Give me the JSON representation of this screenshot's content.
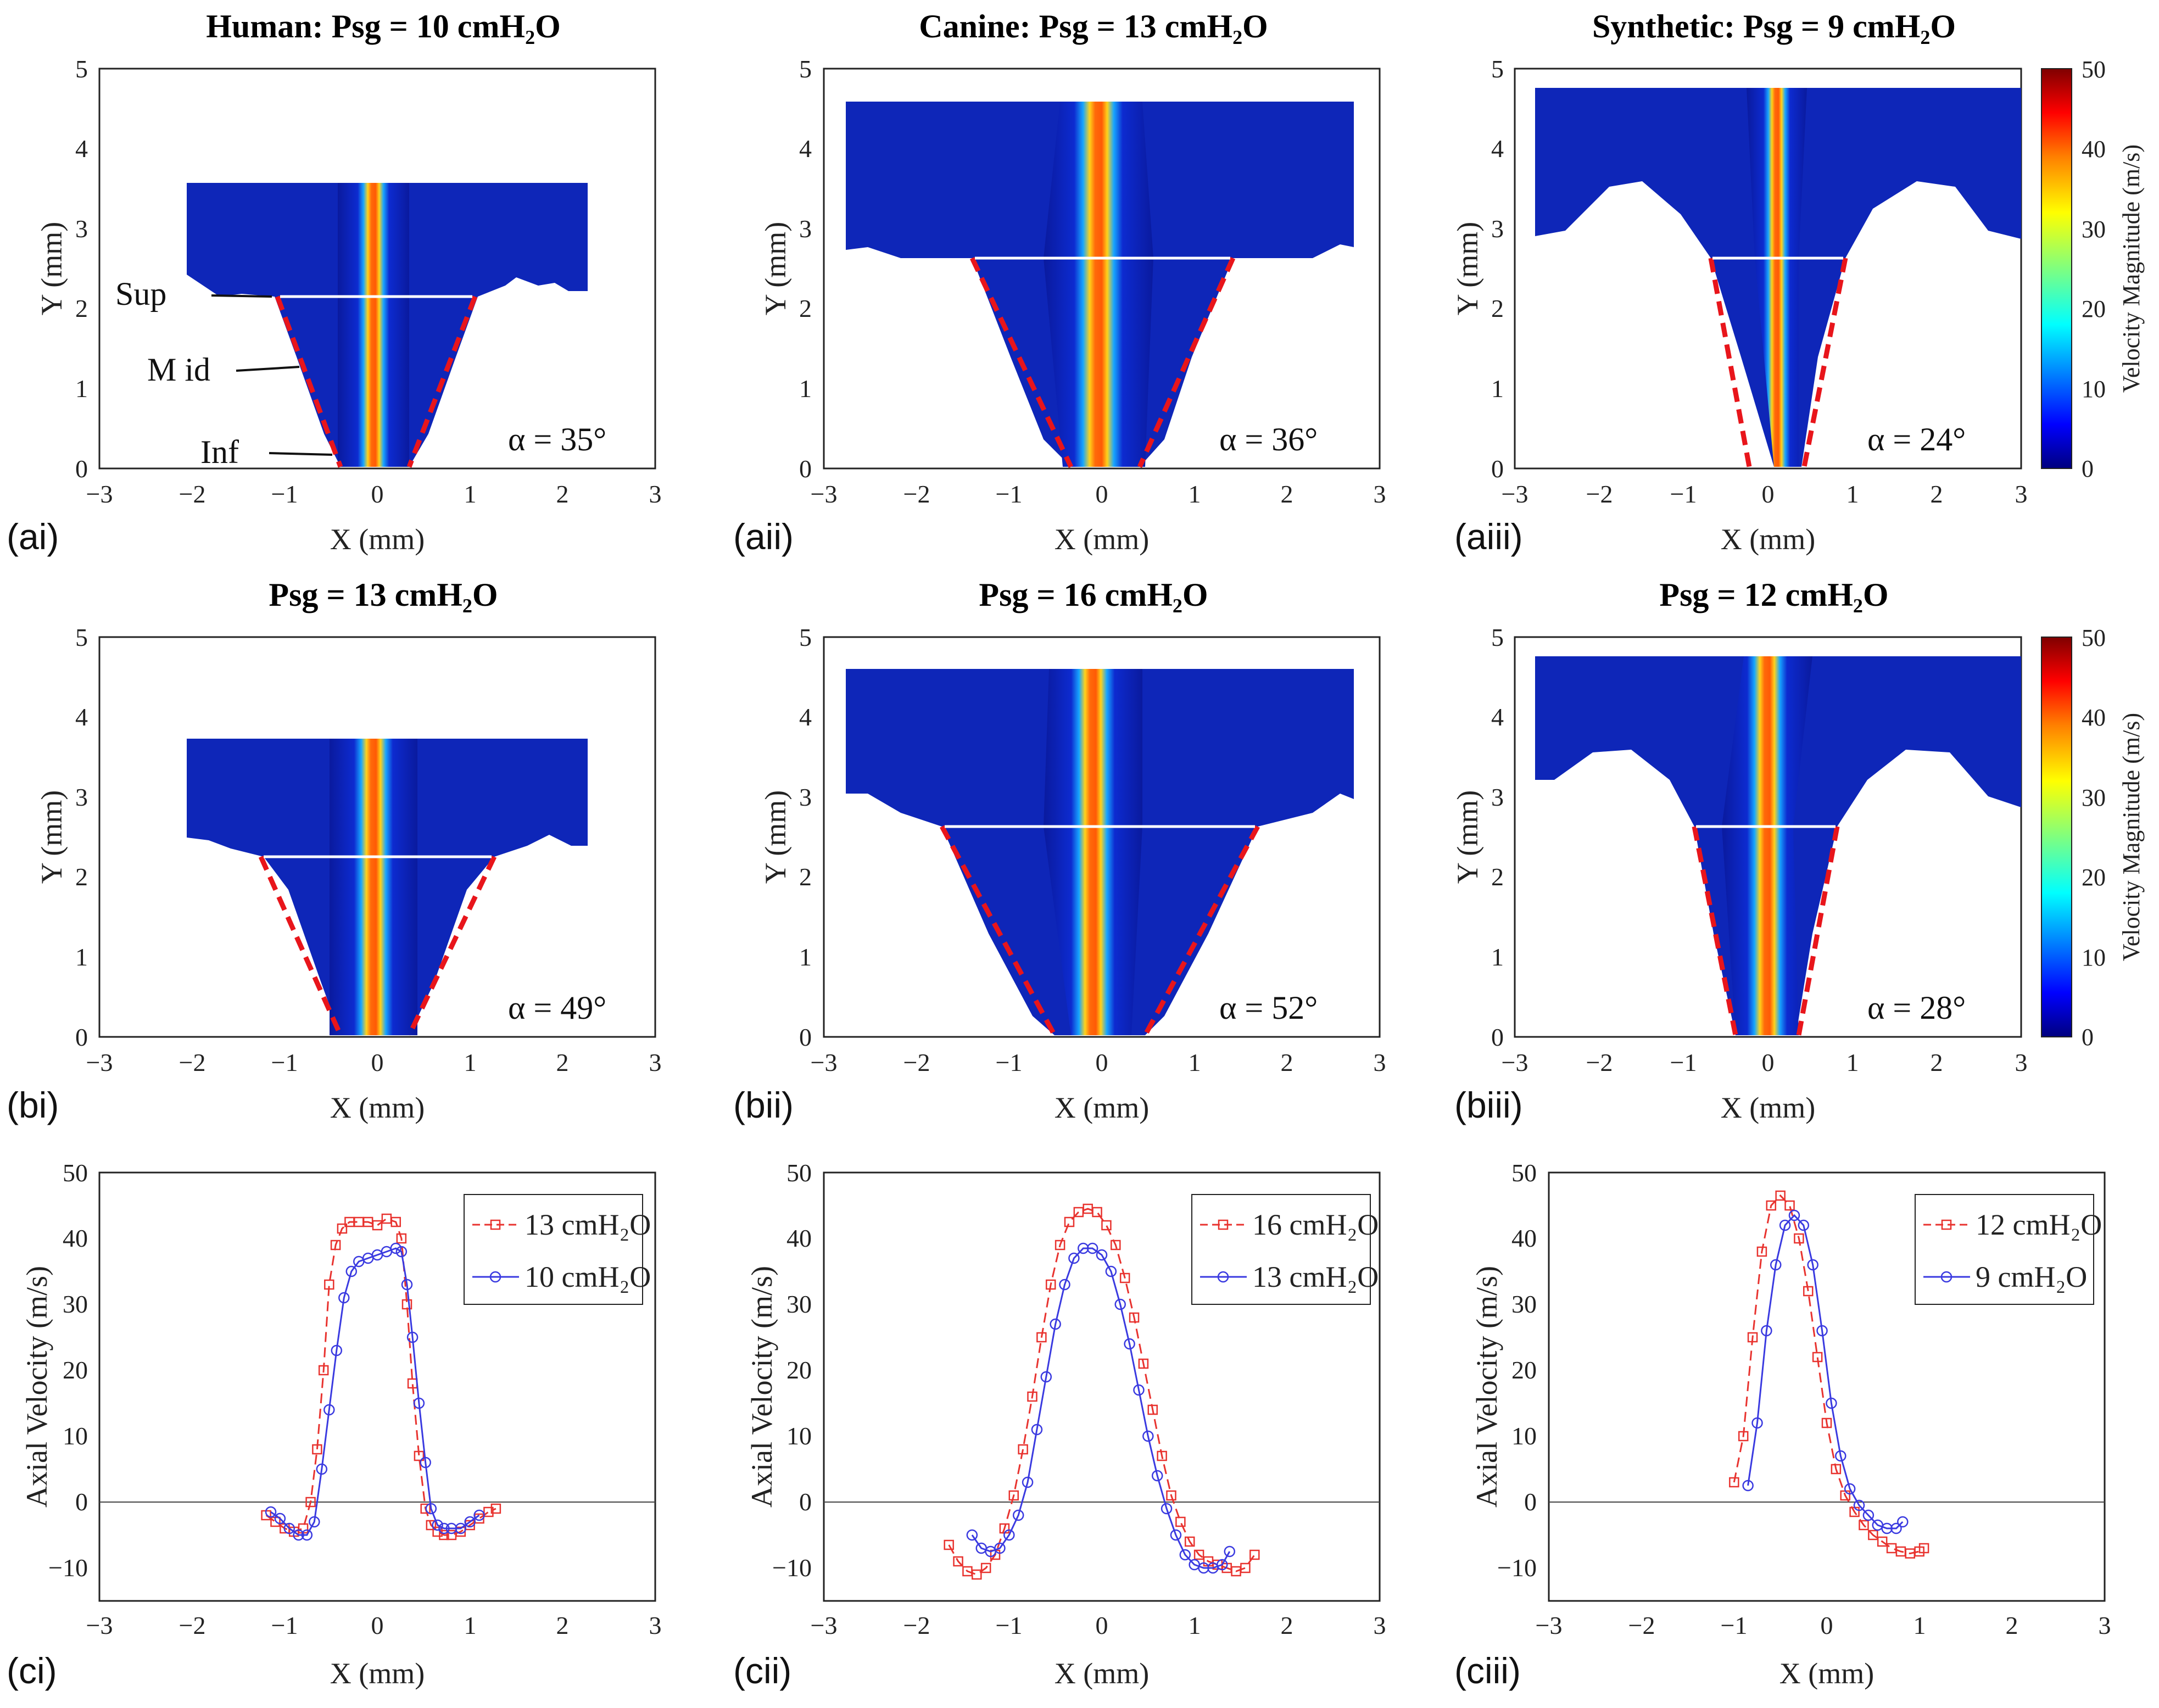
{
  "figure": {
    "colors": {
      "series_high": "#e8332f",
      "series_low": "#3a3ae0",
      "curve_lines": "#f0d14a",
      "dashed_boundary": "#e8151b",
      "colormap": [
        "#00007f",
        "#0000ff",
        "#007fff",
        "#00ffff",
        "#7fff7f",
        "#ffff00",
        "#ff7f00",
        "#ff0000",
        "#7f0000"
      ]
    },
    "colorbar": {
      "label": "Velocity Magnitude (m/s)",
      "ticks": [
        "0",
        "10",
        "20",
        "30",
        "40",
        "50"
      ],
      "range": [
        0,
        50
      ]
    },
    "rows": [
      {
        "panels": [
          {
            "id": "ai",
            "panel_label": "(ai)",
            "title": "Human: Psg = 10 cmH₂O",
            "alpha": "α = 35°",
            "xlabel": "X (mm)",
            "ylabel": "Y (mm)",
            "xticks": [
              "−3",
              "−2",
              "−1",
              "0",
              "1",
              "2",
              "3"
            ],
            "yticks": [
              "0",
              "1",
              "2",
              "3",
              "4",
              "5"
            ],
            "xlim": [
              -3,
              3
            ],
            "ylim": [
              0,
              5
            ],
            "annotations": [
              "Sup",
              "M id",
              "Inf"
            ]
          },
          {
            "id": "aii",
            "panel_label": "(aii)",
            "title": "Canine: Psg = 13 cmH₂O",
            "alpha": "α = 36°",
            "xlabel": "X (mm)",
            "ylabel": "Y (mm)",
            "xticks": [
              "−3",
              "−2",
              "−1",
              "0",
              "1",
              "2",
              "3"
            ],
            "yticks": [
              "0",
              "1",
              "2",
              "3",
              "4",
              "5"
            ],
            "xlim": [
              -3,
              3
            ],
            "ylim": [
              0,
              5
            ]
          },
          {
            "id": "aiii",
            "panel_label": "(aiii)",
            "title": "Synthetic: Psg = 9 cmH₂O",
            "alpha": "α = 24°",
            "xlabel": "X (mm)",
            "ylabel": "Y (mm)",
            "xticks": [
              "−3",
              "−2",
              "−1",
              "0",
              "1",
              "2",
              "3"
            ],
            "yticks": [
              "0",
              "1",
              "2",
              "3",
              "4",
              "5"
            ],
            "xlim": [
              -3,
              3
            ],
            "ylim": [
              0,
              5
            ]
          }
        ]
      },
      {
        "panels": [
          {
            "id": "bi",
            "panel_label": "(bi)",
            "title": "Psg = 13 cmH₂O",
            "alpha": "α = 49°",
            "xlabel": "X (mm)",
            "ylabel": "Y (mm)",
            "xticks": [
              "−3",
              "−2",
              "−1",
              "0",
              "1",
              "2",
              "3"
            ],
            "yticks": [
              "0",
              "1",
              "2",
              "3",
              "4",
              "5"
            ],
            "xlim": [
              -3,
              3
            ],
            "ylim": [
              0,
              5
            ]
          },
          {
            "id": "bii",
            "panel_label": "(bii)",
            "title": "Psg = 16 cmH₂O",
            "alpha": "α = 52°",
            "xlabel": "X (mm)",
            "ylabel": "Y (mm)",
            "xticks": [
              "−3",
              "−2",
              "−1",
              "0",
              "1",
              "2",
              "3"
            ],
            "yticks": [
              "0",
              "1",
              "2",
              "3",
              "4",
              "5"
            ],
            "xlim": [
              -3,
              3
            ],
            "ylim": [
              0,
              5
            ]
          },
          {
            "id": "biii",
            "panel_label": "(biii)",
            "title": "Psg = 12 cmH₂O",
            "alpha": "α = 28°",
            "xlabel": "X (mm)",
            "ylabel": "Y (mm)",
            "xticks": [
              "−3",
              "−2",
              "−1",
              "0",
              "1",
              "2",
              "3"
            ],
            "yticks": [
              "0",
              "1",
              "2",
              "3",
              "4",
              "5"
            ],
            "xlim": [
              -3,
              3
            ],
            "ylim": [
              0,
              5
            ]
          }
        ]
      },
      {
        "panels": [
          {
            "id": "ci",
            "panel_label": "(ci)",
            "xlabel": "X (mm)",
            "ylabel": "Axial Velocity (m/s)",
            "xticks": [
              "−3",
              "−2",
              "−1",
              "0",
              "1",
              "2",
              "3"
            ],
            "yticks": [
              "−10",
              "0",
              "10",
              "20",
              "30",
              "40",
              "50"
            ]
          },
          {
            "id": "cii",
            "panel_label": "(cii)",
            "xlabel": "X (mm)",
            "ylabel": "Axial Velocity (m/s)",
            "xticks": [
              "−3",
              "−2",
              "−1",
              "0",
              "1",
              "2",
              "3"
            ],
            "yticks": [
              "−10",
              "0",
              "10",
              "20",
              "30",
              "40",
              "50"
            ]
          },
          {
            "id": "ciii",
            "panel_label": "(ciii)",
            "xlabel": "X (mm)",
            "ylabel": "Axial Velocity (m/s)",
            "xticks": [
              "−3",
              "−2",
              "−1",
              "0",
              "1",
              "2",
              "3"
            ],
            "yticks": [
              "−10",
              "0",
              "10",
              "20",
              "30",
              "40",
              "50"
            ]
          }
        ]
      }
    ]
  },
  "chart_data": [
    {
      "type": "line",
      "id": "ci",
      "xlim": [
        -3,
        3
      ],
      "ylim": [
        -15,
        50
      ],
      "legend_placement": "top-right",
      "grid": false,
      "xlabel": "X (mm)",
      "ylabel": "Axial Velocity (m/s)",
      "series": [
        {
          "name": "13 cmH₂O",
          "marker": "square",
          "dash": "dashed",
          "x": [
            -1.2,
            -1.1,
            -1.0,
            -0.9,
            -0.8,
            -0.72,
            -0.65,
            -0.58,
            -0.52,
            -0.45,
            -0.38,
            -0.3,
            -0.2,
            -0.1,
            0.0,
            0.1,
            0.2,
            0.26,
            0.32,
            0.38,
            0.45,
            0.52,
            0.58,
            0.65,
            0.72,
            0.8,
            0.9,
            1.0,
            1.1,
            1.2,
            1.28
          ],
          "y": [
            -2,
            -3,
            -4,
            -4.5,
            -4,
            0,
            8,
            20,
            33,
            39,
            41.5,
            42.5,
            42.5,
            42.5,
            42,
            43,
            42.5,
            40,
            30,
            18,
            7,
            -1,
            -3.5,
            -4.5,
            -5,
            -5,
            -4.5,
            -3.5,
            -2.5,
            -1.5,
            -1
          ]
        },
        {
          "name": "10 cmH₂O",
          "marker": "circle",
          "dash": "solid",
          "x": [
            -1.15,
            -1.05,
            -0.95,
            -0.85,
            -0.76,
            -0.68,
            -0.6,
            -0.52,
            -0.44,
            -0.36,
            -0.28,
            -0.2,
            -0.1,
            0.0,
            0.1,
            0.2,
            0.26,
            0.32,
            0.38,
            0.45,
            0.52,
            0.58,
            0.65,
            0.72,
            0.8,
            0.9,
            1.0,
            1.1
          ],
          "y": [
            -1.5,
            -2.5,
            -4,
            -5,
            -5,
            -3,
            5,
            14,
            23,
            31,
            35,
            36.5,
            37,
            37.5,
            38,
            38.5,
            38,
            33,
            25,
            15,
            6,
            -1,
            -3.5,
            -4,
            -4,
            -4,
            -3,
            -2
          ]
        }
      ]
    },
    {
      "type": "line",
      "id": "cii",
      "xlim": [
        -3,
        3
      ],
      "ylim": [
        -15,
        50
      ],
      "legend_placement": "top-right",
      "grid": false,
      "xlabel": "X (mm)",
      "ylabel": "Axial Velocity (m/s)",
      "series": [
        {
          "name": "16 cmH₂O",
          "marker": "square",
          "dash": "dashed",
          "x": [
            -1.65,
            -1.55,
            -1.45,
            -1.35,
            -1.25,
            -1.15,
            -1.05,
            -0.95,
            -0.85,
            -0.75,
            -0.65,
            -0.55,
            -0.45,
            -0.35,
            -0.25,
            -0.15,
            -0.05,
            0.05,
            0.15,
            0.25,
            0.35,
            0.45,
            0.55,
            0.65,
            0.75,
            0.85,
            0.95,
            1.05,
            1.15,
            1.25,
            1.35,
            1.45,
            1.55,
            1.65
          ],
          "y": [
            -6.5,
            -9,
            -10.5,
            -11,
            -10,
            -8,
            -4,
            1,
            8,
            16,
            25,
            33,
            39,
            42.5,
            44,
            44.5,
            44,
            42,
            39,
            34,
            28,
            21,
            14,
            7,
            1,
            -3,
            -6,
            -8,
            -9,
            -9.5,
            -10,
            -10.5,
            -10,
            -8
          ]
        },
        {
          "name": "13 cmH₂O",
          "marker": "circle",
          "dash": "solid",
          "x": [
            -1.4,
            -1.3,
            -1.2,
            -1.1,
            -1.0,
            -0.9,
            -0.8,
            -0.7,
            -0.6,
            -0.5,
            -0.4,
            -0.3,
            -0.2,
            -0.1,
            0.0,
            0.1,
            0.2,
            0.3,
            0.4,
            0.5,
            0.6,
            0.7,
            0.8,
            0.9,
            1.0,
            1.1,
            1.2,
            1.3,
            1.38
          ],
          "y": [
            -5,
            -7,
            -7.5,
            -7,
            -5,
            -2,
            3,
            11,
            19,
            27,
            33,
            37,
            38.5,
            38.5,
            37.5,
            35,
            30,
            24,
            17,
            10,
            4,
            -1,
            -5,
            -8,
            -9.5,
            -10,
            -10,
            -9.5,
            -7.5
          ]
        }
      ]
    },
    {
      "type": "line",
      "id": "ciii",
      "xlim": [
        -3,
        3
      ],
      "ylim": [
        -15,
        50
      ],
      "legend_placement": "top-right",
      "grid": false,
      "xlabel": "X (mm)",
      "ylabel": "Axial Velocity (m/s)",
      "series": [
        {
          "name": "12 cmH₂O",
          "marker": "square",
          "dash": "dashed",
          "x": [
            -1.0,
            -0.9,
            -0.8,
            -0.7,
            -0.6,
            -0.5,
            -0.4,
            -0.3,
            -0.2,
            -0.1,
            0.0,
            0.1,
            0.2,
            0.3,
            0.4,
            0.5,
            0.6,
            0.7,
            0.8,
            0.9,
            1.0,
            1.05
          ],
          "y": [
            3,
            10,
            25,
            38,
            45,
            46.5,
            45,
            40,
            32,
            22,
            12,
            5,
            1,
            -1.5,
            -3.5,
            -5,
            -6,
            -7,
            -7.5,
            -7.8,
            -7.5,
            -7
          ]
        },
        {
          "name": "9 cmH₂O",
          "marker": "circle",
          "dash": "solid",
          "x": [
            -0.85,
            -0.75,
            -0.65,
            -0.55,
            -0.45,
            -0.35,
            -0.25,
            -0.15,
            -0.05,
            0.05,
            0.15,
            0.25,
            0.35,
            0.45,
            0.55,
            0.65,
            0.75,
            0.82
          ],
          "y": [
            2.5,
            12,
            26,
            36,
            42,
            43.5,
            42,
            36,
            26,
            15,
            7,
            2,
            -0.5,
            -2,
            -3.5,
            -4,
            -4,
            -3
          ]
        }
      ]
    }
  ]
}
